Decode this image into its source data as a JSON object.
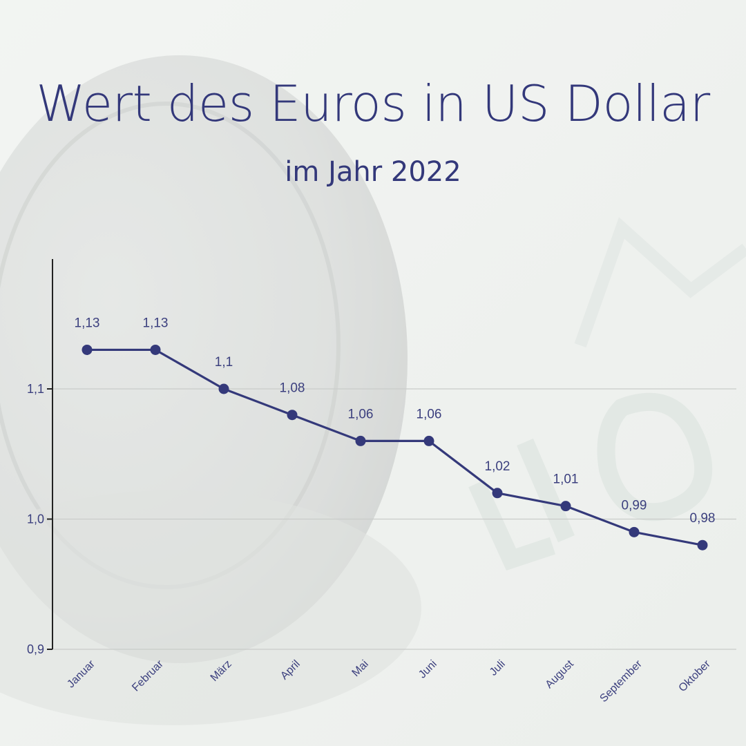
{
  "title": "Wert des Euros in US Dollar",
  "subtitle": "im Jahr 2022",
  "colors": {
    "line": "#34397a",
    "axis": "#222222",
    "grid": "#c9ccc9",
    "text": "#33387a"
  },
  "chart_data": {
    "type": "line",
    "categories": [
      "Januar",
      "Februar",
      "März",
      "April",
      "Mai",
      "Juni",
      "Juli",
      "August",
      "September",
      "Oktober"
    ],
    "values": [
      1.13,
      1.13,
      1.1,
      1.08,
      1.06,
      1.06,
      1.02,
      1.01,
      0.99,
      0.98
    ],
    "data_labels": [
      "1,13",
      "1,13",
      "1,1",
      "1,08",
      "1,06",
      "1,06",
      "1,02",
      "1,01",
      "0,99",
      "0,98"
    ],
    "y_ticks": [
      0.9,
      1.0,
      1.1
    ],
    "y_tick_labels": [
      "0,9",
      "1,0",
      "1,1"
    ],
    "ylim": [
      0.9,
      1.1
    ],
    "grid": true,
    "legend": "none"
  }
}
